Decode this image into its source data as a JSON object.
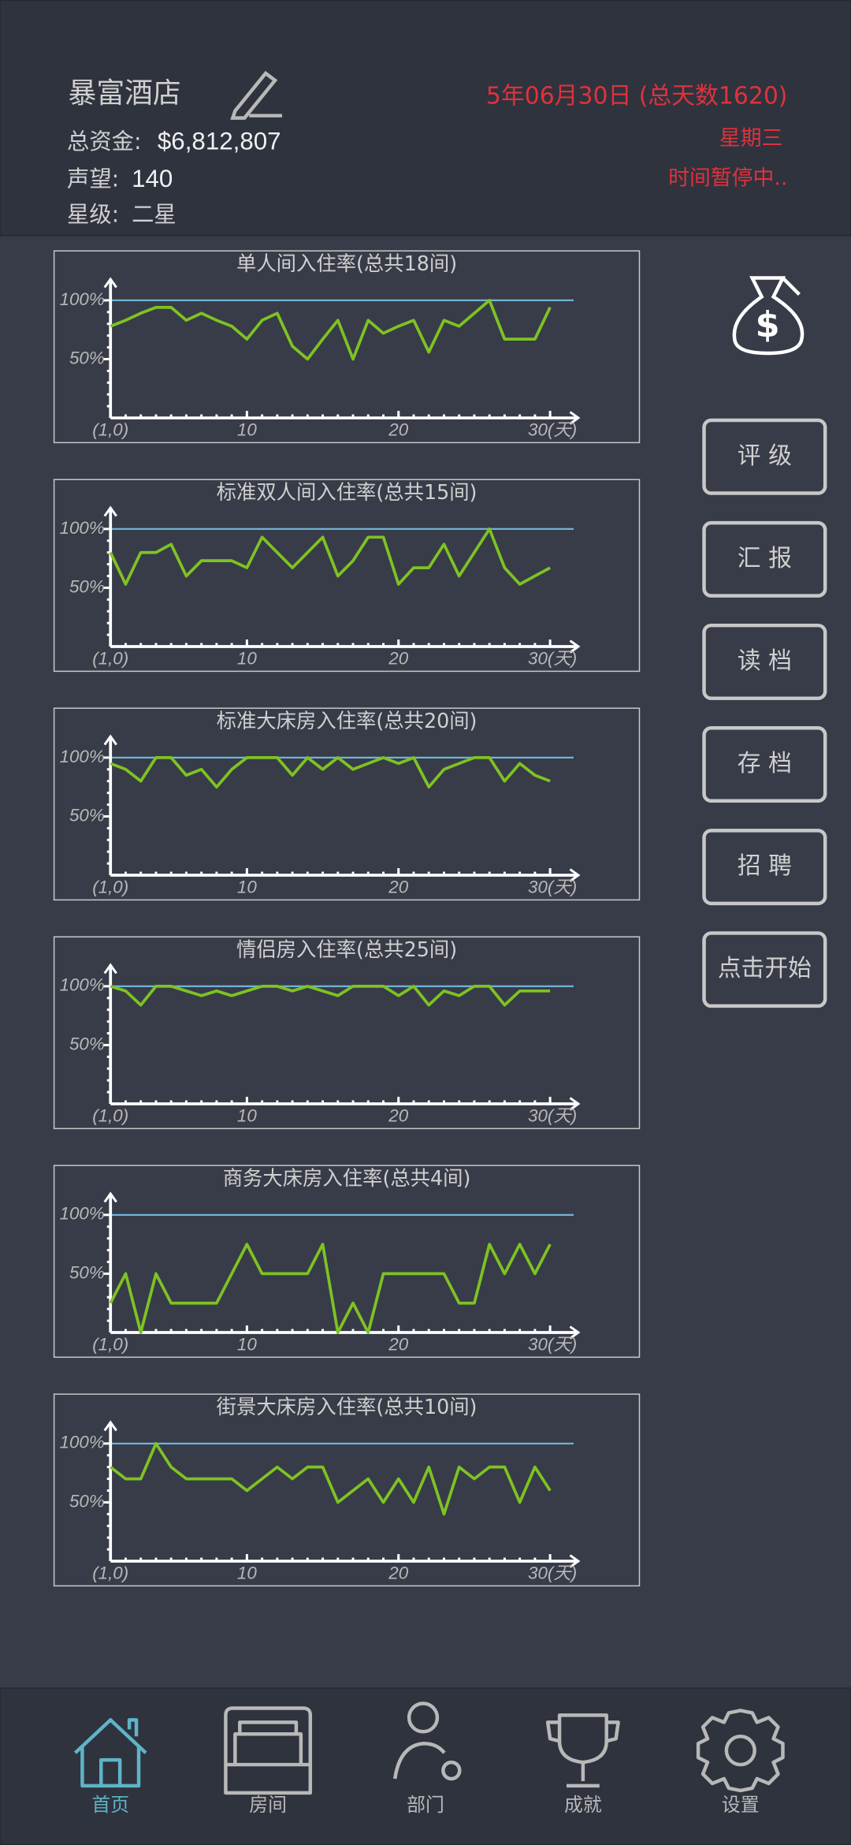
{
  "header": {
    "hotel_name": "暴富酒店",
    "funds_label": "总资金:",
    "funds": "$6,812,807",
    "reputation_label": "声望:",
    "reputation": "140",
    "star_label": "星级:",
    "star": "二星",
    "date": "5年06月30日 (总天数1620)",
    "weekday": "星期三",
    "status": "时间暂停中.."
  },
  "buttons": [
    "评 级",
    "汇 报",
    "读 档",
    "存 档",
    "招 聘",
    "点击开始"
  ],
  "nav": [
    "首页",
    "房间",
    "部门",
    "成就",
    "设置"
  ],
  "chart_data": [
    {
      "type": "line",
      "title": "单人间入住率(总共18间)",
      "x": [
        1,
        2,
        3,
        4,
        5,
        6,
        7,
        8,
        9,
        10,
        11,
        12,
        13,
        14,
        15,
        16,
        17,
        18,
        19,
        20,
        21,
        22,
        23,
        24,
        25,
        26,
        27,
        28,
        29,
        30
      ],
      "values": [
        78,
        83,
        89,
        94,
        94,
        83,
        89,
        83,
        78,
        67,
        83,
        89,
        61,
        50,
        67,
        83,
        50,
        83,
        72,
        78,
        83,
        56,
        83,
        78,
        89,
        100,
        67,
        67,
        67,
        94
      ],
      "color": "#7ec322",
      "xlim": [
        1,
        30
      ],
      "xticks": [
        {
          "value": 1,
          "label": "(1,0)"
        },
        10,
        20,
        {
          "value": 30,
          "label": "30(天)"
        }
      ],
      "ylim": [
        0,
        100
      ],
      "yticks": [
        {
          "value": 50,
          "label": "50%"
        },
        {
          "value": 100,
          "label": "100%"
        }
      ],
      "hline": 100,
      "hline_color": "#6fb3d6"
    },
    {
      "type": "line",
      "title": "标准双人间入住率(总共15间)",
      "x": [
        1,
        2,
        3,
        4,
        5,
        6,
        7,
        8,
        9,
        10,
        11,
        12,
        13,
        14,
        15,
        16,
        17,
        18,
        19,
        20,
        21,
        22,
        23,
        24,
        25,
        26,
        27,
        28,
        29,
        30
      ],
      "values": [
        80,
        53,
        80,
        80,
        87,
        60,
        73,
        73,
        73,
        67,
        93,
        80,
        67,
        80,
        93,
        60,
        73,
        93,
        93,
        53,
        67,
        67,
        87,
        60,
        80,
        100,
        67,
        53,
        60,
        67
      ],
      "color": "#7ec322",
      "xlim": [
        1,
        30
      ],
      "xticks": [
        {
          "value": 1,
          "label": "(1,0)"
        },
        10,
        20,
        {
          "value": 30,
          "label": "30(天)"
        }
      ],
      "ylim": [
        0,
        100
      ],
      "yticks": [
        {
          "value": 50,
          "label": "50%"
        },
        {
          "value": 100,
          "label": "100%"
        }
      ],
      "hline": 100,
      "hline_color": "#6fb3d6"
    },
    {
      "type": "line",
      "title": "标准大床房入住率(总共20间)",
      "x": [
        1,
        2,
        3,
        4,
        5,
        6,
        7,
        8,
        9,
        10,
        11,
        12,
        13,
        14,
        15,
        16,
        17,
        18,
        19,
        20,
        21,
        22,
        23,
        24,
        25,
        26,
        27,
        28,
        29,
        30
      ],
      "values": [
        95,
        90,
        80,
        100,
        100,
        85,
        90,
        75,
        90,
        100,
        100,
        100,
        85,
        100,
        90,
        100,
        90,
        95,
        100,
        95,
        100,
        75,
        90,
        95,
        100,
        100,
        80,
        95,
        85,
        80
      ],
      "color": "#7ec322",
      "xlim": [
        1,
        30
      ],
      "xticks": [
        {
          "value": 1,
          "label": "(1,0)"
        },
        10,
        20,
        {
          "value": 30,
          "label": "30(天)"
        }
      ],
      "ylim": [
        0,
        100
      ],
      "yticks": [
        {
          "value": 50,
          "label": "50%"
        },
        {
          "value": 100,
          "label": "100%"
        }
      ],
      "hline": 100,
      "hline_color": "#6fb3d6"
    },
    {
      "type": "line",
      "title": "情侣房入住率(总共25间)",
      "x": [
        1,
        2,
        3,
        4,
        5,
        6,
        7,
        8,
        9,
        10,
        11,
        12,
        13,
        14,
        15,
        16,
        17,
        18,
        19,
        20,
        21,
        22,
        23,
        24,
        25,
        26,
        27,
        28,
        29,
        30
      ],
      "values": [
        100,
        96,
        84,
        100,
        100,
        96,
        92,
        96,
        92,
        96,
        100,
        100,
        96,
        100,
        96,
        92,
        100,
        100,
        100,
        92,
        100,
        84,
        96,
        92,
        100,
        100,
        84,
        96,
        96,
        96
      ],
      "color": "#7ec322",
      "xlim": [
        1,
        30
      ],
      "xticks": [
        {
          "value": 1,
          "label": "(1,0)"
        },
        10,
        20,
        {
          "value": 30,
          "label": "30(天)"
        }
      ],
      "ylim": [
        0,
        100
      ],
      "yticks": [
        {
          "value": 50,
          "label": "50%"
        },
        {
          "value": 100,
          "label": "100%"
        }
      ],
      "hline": 100,
      "hline_color": "#6fb3d6"
    },
    {
      "type": "line",
      "title": "商务大床房入住率(总共4间)",
      "x": [
        1,
        2,
        3,
        4,
        5,
        6,
        7,
        8,
        9,
        10,
        11,
        12,
        13,
        14,
        15,
        16,
        17,
        18,
        19,
        20,
        21,
        22,
        23,
        24,
        25,
        26,
        27,
        28,
        29,
        30
      ],
      "values": [
        25,
        50,
        0,
        50,
        25,
        25,
        25,
        25,
        50,
        75,
        50,
        50,
        50,
        50,
        75,
        0,
        25,
        0,
        50,
        50,
        50,
        50,
        50,
        25,
        25,
        75,
        50,
        75,
        50,
        75
      ],
      "color": "#7ec322",
      "xlim": [
        1,
        30
      ],
      "xticks": [
        {
          "value": 1,
          "label": "(1,0)"
        },
        10,
        20,
        {
          "value": 30,
          "label": "30(天)"
        }
      ],
      "ylim": [
        0,
        100
      ],
      "yticks": [
        {
          "value": 50,
          "label": "50%"
        },
        {
          "value": 100,
          "label": "100%"
        }
      ],
      "hline": 100,
      "hline_color": "#6fb3d6"
    },
    {
      "type": "line",
      "title": "街景大床房入住率(总共10间)",
      "x": [
        1,
        2,
        3,
        4,
        5,
        6,
        7,
        8,
        9,
        10,
        11,
        12,
        13,
        14,
        15,
        16,
        17,
        18,
        19,
        20,
        21,
        22,
        23,
        24,
        25,
        26,
        27,
        28,
        29,
        30
      ],
      "values": [
        80,
        70,
        70,
        100,
        80,
        70,
        70,
        70,
        70,
        60,
        70,
        80,
        70,
        80,
        80,
        50,
        60,
        70,
        50,
        70,
        50,
        80,
        40,
        80,
        70,
        80,
        80,
        50,
        80,
        60
      ],
      "color": "#7ec322",
      "xlim": [
        1,
        30
      ],
      "xticks": [
        {
          "value": 1,
          "label": "(1,0)"
        },
        10,
        20,
        {
          "value": 30,
          "label": "30(天)"
        }
      ],
      "ylim": [
        0,
        100
      ],
      "yticks": [
        {
          "value": 50,
          "label": "50%"
        },
        {
          "value": 100,
          "label": "100%"
        }
      ],
      "hline": 100,
      "hline_color": "#6fb3d6"
    }
  ]
}
